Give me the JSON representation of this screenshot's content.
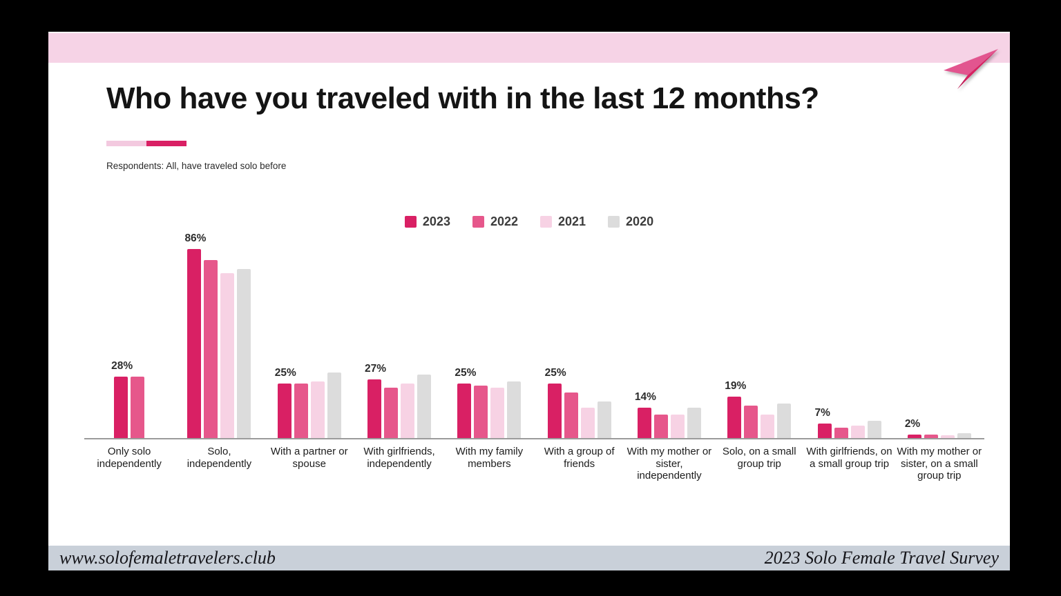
{
  "slide": {
    "title": "Who have you traveled with in the last 12 months?",
    "subtitle": "Respondents: All, have traveled solo before",
    "footer_left": "www.solofemaletravelers.club",
    "footer_right": "2023 Solo Female Travel Survey"
  },
  "icons": {
    "paper_plane": "paper-plane-icon"
  },
  "colors": {
    "series_2023": "#d92064",
    "series_2022": "#e6578b",
    "series_2021": "#f7d2e4",
    "series_2020": "#dcdcdc",
    "header_band": "#f6d3e6",
    "underline_light": "#f3c9df",
    "underline_dark": "#d92064",
    "footer_band": "#c9d0d9",
    "axis_line": "#9b9b9b"
  },
  "chart_data": {
    "type": "bar",
    "title": "Who have you traveled with in the last 12 months?",
    "xlabel": "",
    "ylabel": "",
    "ylim": [
      0,
      100
    ],
    "grid": false,
    "legend_position": "top-center",
    "categories": [
      "Only solo independently",
      "Solo, independently",
      "With a partner or spouse",
      "With girlfriends, independently",
      "With my family members",
      "With a group of friends",
      "With my mother or sister, independently",
      "Solo, on a small group trip",
      "With girlfriends, on a small group trip",
      "With my mother or sister, on a small group trip"
    ],
    "series": [
      {
        "name": "2023",
        "color": "#d92064",
        "values": [
          28,
          86,
          25,
          27,
          25,
          25,
          14,
          19,
          7,
          2
        ]
      },
      {
        "name": "2022",
        "color": "#e6578b",
        "values": [
          28,
          81,
          25,
          23,
          24,
          21,
          11,
          15,
          5,
          2
        ]
      },
      {
        "name": "2021",
        "color": "#f7d2e4",
        "values": [
          null,
          75,
          26,
          25,
          23,
          14,
          11,
          11,
          6,
          1.5
        ]
      },
      {
        "name": "2020",
        "color": "#dcdcdc",
        "values": [
          null,
          77,
          30,
          29,
          26,
          17,
          14,
          16,
          8,
          2.5
        ]
      }
    ],
    "data_labels": [
      "28%",
      "86%",
      "25%",
      "27%",
      "25%",
      "25%",
      "14%",
      "19%",
      "7%",
      "2%"
    ]
  }
}
